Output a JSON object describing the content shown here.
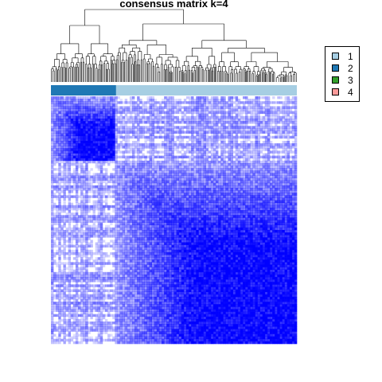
{
  "chart_data": {
    "type": "heatmap",
    "title": "consensus matrix k=4",
    "n_samples": 300,
    "cluster_order": [
      "2",
      "1"
    ],
    "cluster_fractions": [
      0.265,
      0.735
    ],
    "legend": {
      "placement": "top-right",
      "entries": [
        {
          "label": "1",
          "color": "#A6CEE3"
        },
        {
          "label": "2",
          "color": "#1F78B4"
        },
        {
          "label": "3",
          "color": "#33A02C"
        },
        {
          "label": "4",
          "color": "#FB9A99"
        }
      ]
    },
    "heatmap_color_low": "#FFFFFF",
    "heatmap_color_high": "#0000FF",
    "value_range": [
      0,
      1
    ],
    "dendrogram": true
  }
}
